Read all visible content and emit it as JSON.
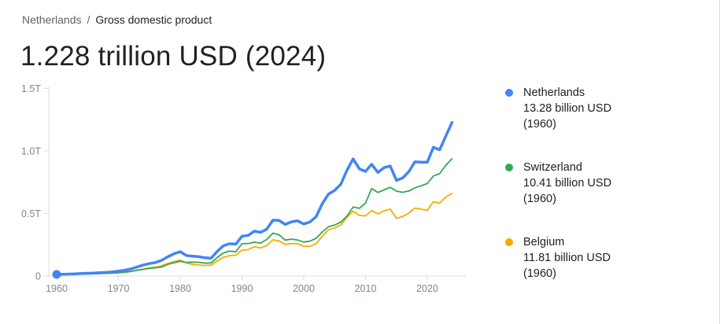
{
  "breadcrumb": {
    "country": "Netherlands",
    "separator": "/",
    "metric": "Gross domestic product"
  },
  "header": {
    "title": "1.228 trillion USD (2024)"
  },
  "legend": {
    "items": [
      {
        "key": "netherlands",
        "label": "Netherlands",
        "value": "13.28 billion USD (1960)",
        "color": "#4285f4"
      },
      {
        "key": "switzerland",
        "label": "Switzerland",
        "value": "10.41 billion USD (1960)",
        "color": "#34a853"
      },
      {
        "key": "belgium",
        "label": "Belgium",
        "value": "11.81 billion USD (1960)",
        "color": "#f9ab00"
      }
    ]
  },
  "chart_data": {
    "type": "line",
    "title": "Gross domestic product, current USD, 1960-2024",
    "ylabel": "",
    "xlabel": "",
    "values_unit": "billion USD",
    "ylim_trillion": [
      0,
      1.5
    ],
    "grid": false,
    "legend_position": "right",
    "x_ticks": [
      1960,
      1970,
      1980,
      1990,
      2000,
      2010,
      2020
    ],
    "y_ticks": [
      {
        "value": 0,
        "label": "0"
      },
      {
        "value": 0.5,
        "label": "0.5T"
      },
      {
        "value": 1.0,
        "label": "1.0T"
      },
      {
        "value": 1.5,
        "label": "1.5T"
      }
    ],
    "x": [
      1960,
      1961,
      1962,
      1963,
      1964,
      1965,
      1966,
      1967,
      1968,
      1969,
      1970,
      1971,
      1972,
      1973,
      1974,
      1975,
      1976,
      1977,
      1978,
      1979,
      1980,
      1981,
      1982,
      1983,
      1984,
      1985,
      1986,
      1987,
      1988,
      1989,
      1990,
      1991,
      1992,
      1993,
      1994,
      1995,
      1996,
      1997,
      1998,
      1999,
      2000,
      2001,
      2002,
      2003,
      2004,
      2005,
      2006,
      2007,
      2008,
      2009,
      2010,
      2011,
      2012,
      2013,
      2014,
      2015,
      2016,
      2017,
      2018,
      2019,
      2020,
      2021,
      2022,
      2023,
      2024
    ],
    "series": [
      {
        "name": "Netherlands",
        "color": "#4285f4",
        "stroke_width": 3.5,
        "values": [
          13.28,
          14.6,
          15.8,
          17.3,
          20.0,
          22.0,
          23.9,
          26.2,
          29.0,
          32.7,
          39.6,
          46.0,
          56.5,
          72.6,
          87.3,
          99.6,
          108.2,
          125.7,
          153.9,
          178.2,
          195.1,
          164.3,
          159.3,
          154.9,
          146.0,
          142.2,
          197.7,
          241.9,
          258.5,
          255.6,
          318.3,
          325.2,
          358.3,
          349.8,
          374.0,
          446.5,
          444.5,
          412.6,
          433.2,
          442.0,
          416.4,
          432.2,
          473.9,
          578.6,
          655.0,
          685.1,
          734.0,
          845.5,
          936.2,
          857.9,
          836.4,
          893.8,
          828.9,
          866.7,
          879.6,
          765.3,
          783.5,
          833.6,
          914.0,
          910.2,
          909.8,
          1030.0,
          1009.4,
          1118.1,
          1228.0
        ]
      },
      {
        "name": "Switzerland",
        "color": "#34a853",
        "stroke_width": 1.8,
        "values": [
          10.41,
          11.6,
          12.9,
          14.2,
          15.8,
          17.1,
          18.4,
          19.9,
          21.3,
          23.0,
          25.7,
          30.1,
          36.5,
          46.2,
          52.6,
          61.4,
          66.1,
          71.6,
          93.6,
          106.3,
          118.0,
          108.7,
          111.3,
          109.8,
          103.2,
          105.2,
          148.2,
          184.9,
          199.2,
          194.2,
          258.2,
          259.6,
          270.9,
          263.4,
          292.6,
          342.5,
          329.8,
          287.2,
          295.0,
          288.8,
          271.7,
          278.6,
          301.0,
          352.5,
          394.2,
          408.3,
          430.9,
          479.8,
          551.9,
          541.5,
          583.8,
          699.6,
          668.0,
          688.5,
          709.2,
          679.3,
          670.0,
          680.0,
          705.5,
          721.4,
          739.5,
          800.6,
          818.4,
          884.9,
          938.0
        ]
      },
      {
        "name": "Belgium",
        "color": "#f9ab00",
        "stroke_width": 1.8,
        "values": [
          11.81,
          12.4,
          13.3,
          14.3,
          15.9,
          17.4,
          18.8,
          20.1,
          21.7,
          24.2,
          27.1,
          30.4,
          37.3,
          47.5,
          55.9,
          65.2,
          70.9,
          82.4,
          100.8,
          115.8,
          126.9,
          105.2,
          92.7,
          88.5,
          84.5,
          87.4,
          121.4,
          150.6,
          162.9,
          166.6,
          207.2,
          211.2,
          234.7,
          224.5,
          244.3,
          289.5,
          280.9,
          253.4,
          259.7,
          258.5,
          237.9,
          237.8,
          258.8,
          318.8,
          369.0,
          385.0,
          408.0,
          469.6,
          518.6,
          484.6,
          481.0,
          523.8,
          497.2,
          521.4,
          535.3,
          462.3,
          475.8,
          502.9,
          543.3,
          535.3,
          525.2,
          594.1,
          582.6,
          632.2,
          660.0
        ]
      }
    ],
    "start_marker": {
      "x": 1960,
      "value_billion": 13.28,
      "series": "Netherlands",
      "color": "#4285f4"
    }
  }
}
